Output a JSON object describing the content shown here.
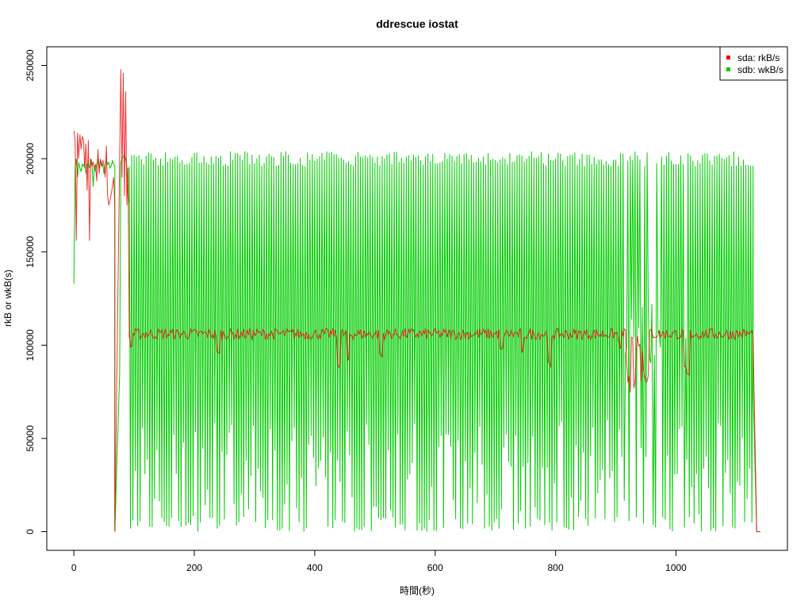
{
  "chart_data": {
    "type": "line",
    "title": "ddrescue iostat",
    "xlabel": "時間(秒)",
    "ylabel": "rkB or wkB(s)",
    "xlim": [
      -45,
      1185
    ],
    "ylim": [
      -10000,
      260000
    ],
    "x_ticks": [
      0,
      200,
      400,
      600,
      800,
      1000
    ],
    "y_ticks": [
      0,
      50000,
      100000,
      150000,
      200000,
      250000
    ],
    "x_tick_labels": [
      "0",
      "200",
      "400",
      "600",
      "800",
      "1000"
    ],
    "y_tick_labels": [
      "0",
      "50000",
      "100000",
      "150000",
      "200000",
      "250000"
    ],
    "grid": false,
    "legend_position": "top-right",
    "sample_interval_s": 2,
    "series": [
      {
        "name": "sda: rkB/s",
        "color": "#ee0000",
        "segments": [
          {
            "x_range": [
              0,
              68
            ],
            "values": [
              215000,
              210000,
              156000,
              214000,
              200000,
              213000,
              205000,
              212000,
              210000,
              195000,
              208000,
              183000,
              210000,
              156000,
              200000,
              196000,
              198000,
              195000,
              197000,
              188000,
              205000,
              192000,
              200000,
              196000,
              199000,
              197000,
              190000,
              207000,
              180000,
              175000,
              178000,
              181000,
              185000,
              190000,
              175000
            ]
          },
          {
            "x_range": [
              68,
              76
            ],
            "values": [
              0
            ]
          },
          {
            "x_range": [
              76,
              92
            ],
            "values": [
              200000,
              248000,
              190000,
              246000,
              180000,
              236000,
              175000,
              195000,
              104000
            ]
          },
          {
            "x_range": [
              92,
              1128
            ],
            "mean": 106000,
            "fluctuation": 3000,
            "dips": [
              [
                95,
                98000
              ],
              [
                240,
                93000
              ],
              [
                440,
                88000
              ],
              [
                455,
                90000
              ],
              [
                510,
                92000
              ],
              [
                710,
                95000
              ],
              [
                745,
                93000
              ],
              [
                790,
                87000
              ],
              [
                920,
                80000
              ],
              [
                925,
                72000
              ],
              [
                930,
                75000
              ],
              [
                945,
                68000
              ],
              [
                950,
                78000
              ],
              [
                1015,
                85000
              ],
              [
                1020,
                82000
              ]
            ]
          },
          {
            "x_range": [
              1128,
              1140
            ],
            "values": [
              104000,
              0,
              0
            ]
          }
        ]
      },
      {
        "name": "sdb: wkB/s",
        "color": "#00cc00",
        "segments": [
          {
            "x_range": [
              0,
              68
            ],
            "values": [
              133000,
              195000,
              200000,
              190000,
              198000,
              195000,
              193000,
              197000,
              196000,
              198000,
              192000,
              197000,
              197000,
              195000,
              200000,
              198000,
              185000,
              196000,
              193000,
              197000,
              200000,
              195000,
              199000,
              196000,
              197000,
              192000,
              195000,
              199000,
              197000,
              198000,
              195000,
              196000,
              199000,
              197000,
              196000
            ]
          },
          {
            "x_range": [
              68,
              76
            ],
            "values": [
              0
            ]
          },
          {
            "x_range": [
              76,
              92
            ],
            "values": [
              85000,
              198000,
              200000,
              201000,
              202000,
              200000,
              196000,
              180000,
              176000
            ]
          },
          {
            "x_range": [
              92,
              1128
            ],
            "oscillation_period_s": 4,
            "peak_approx": 200000,
            "trough_min": 0,
            "trough_max": 60000,
            "mid_band": [
              [
                916,
                975,
                90000,
                130000
              ],
              [
                1015,
                1025,
                80000,
                110000
              ]
            ]
          },
          {
            "x_range": [
              1128,
              1140
            ],
            "values": [
              75000,
              0,
              0
            ]
          }
        ]
      }
    ]
  }
}
